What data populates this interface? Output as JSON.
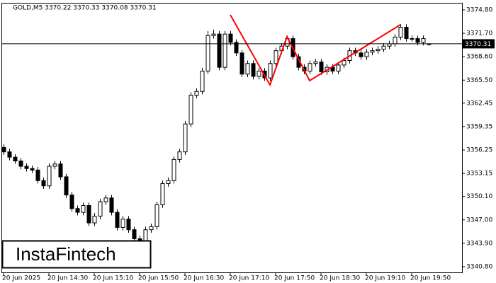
{
  "chart_data": {
    "type": "candlestick",
    "title": "GOLD,M5  3370.22 3370.33 3370.08 3370.31",
    "logo": "InstaFintech",
    "categories": [
      "20 Jun 2025",
      null,
      null,
      null,
      null,
      null,
      null,
      null,
      "20 Jun 14:30",
      null,
      null,
      null,
      null,
      null,
      null,
      null,
      "20 Jun 15:10",
      null,
      null,
      null,
      null,
      null,
      null,
      null,
      "20 Jun 15:50",
      null,
      null,
      null,
      null,
      null,
      null,
      null,
      "20 Jun 16:30",
      null,
      null,
      null,
      null,
      null,
      null,
      null,
      "20 Jun 17:10",
      null,
      null,
      null,
      null,
      null,
      null,
      null,
      "20 Jun 17:50",
      null,
      null,
      null,
      null,
      null,
      null,
      null,
      "20 Jun 18:30",
      null,
      null,
      null,
      null,
      null,
      null,
      null,
      "20 Jun 19:10",
      null,
      null,
      null,
      null,
      null,
      null,
      null,
      "20 Jun 19:50",
      null,
      null,
      null
    ],
    "open": [
      3356.6,
      3356.0,
      3355.3,
      3354.8,
      3354.1,
      3353.8,
      3353.6,
      3352.2,
      3351.5,
      3354.1,
      3354.4,
      3352.7,
      3350.3,
      3348.5,
      3348.0,
      3348.9,
      3346.6,
      3347.5,
      3349.4,
      3349.9,
      3348.0,
      3346.0,
      3347.1,
      3345.7,
      3344.5,
      3344.1,
      3345.7,
      3346.1,
      3349.0,
      3351.8,
      3352.2,
      3355.0,
      3356.0,
      3359.7,
      3363.5,
      3364.0,
      3366.7,
      3371.4,
      3371.6,
      3367.2,
      3371.6,
      3370.5,
      3369.1,
      3366.3,
      3367.7,
      3366.0,
      3366.7,
      3365.8,
      3367.7,
      3369.4,
      3370.0,
      3371.0,
      3368.6,
      3367.2,
      3366.7,
      3367.7,
      3367.9,
      3366.6,
      3367.2,
      3366.7,
      3367.5,
      3368.1,
      3369.4,
      3369.1,
      3368.6,
      3369.2,
      3369.4,
      3369.6,
      3370.0,
      3370.3,
      3371.2,
      3372.5,
      3371.0,
      3371.0,
      3370.5,
      3370.22
    ],
    "high": [
      3357.0,
      3356.4,
      3355.7,
      3355.2,
      3354.5,
      3354.2,
      3354.0,
      3352.6,
      3354.5,
      3354.8,
      3354.8,
      3353.1,
      3350.7,
      3348.9,
      3349.3,
      3349.3,
      3347.9,
      3349.8,
      3350.3,
      3350.3,
      3348.4,
      3347.5,
      3347.5,
      3346.1,
      3344.9,
      3346.1,
      3346.5,
      3349.4,
      3352.2,
      3352.6,
      3355.4,
      3356.4,
      3360.1,
      3363.9,
      3364.4,
      3367.1,
      3372.0,
      3372.2,
      3372.0,
      3372.0,
      3372.0,
      3370.9,
      3369.5,
      3368.1,
      3368.1,
      3367.1,
      3367.1,
      3368.1,
      3369.8,
      3370.4,
      3371.4,
      3371.4,
      3369.0,
      3367.6,
      3368.1,
      3368.3,
      3368.3,
      3367.6,
      3367.6,
      3367.9,
      3368.5,
      3369.8,
      3369.8,
      3369.5,
      3369.6,
      3369.8,
      3370.0,
      3370.4,
      3370.7,
      3371.6,
      3372.9,
      3372.9,
      3371.4,
      3371.4,
      3371.4,
      3370.33
    ],
    "low": [
      3355.6,
      3354.9,
      3354.4,
      3353.7,
      3353.4,
      3353.2,
      3351.8,
      3351.1,
      3351.1,
      3353.7,
      3352.3,
      3349.9,
      3348.1,
      3347.6,
      3347.6,
      3346.2,
      3346.2,
      3347.1,
      3349.0,
      3347.6,
      3345.6,
      3345.6,
      3345.3,
      3344.1,
      3343.7,
      3343.7,
      3345.3,
      3345.7,
      3348.6,
      3351.4,
      3351.8,
      3354.6,
      3355.6,
      3359.3,
      3363.1,
      3363.6,
      3366.3,
      3371.0,
      3366.8,
      3366.8,
      3370.1,
      3368.7,
      3365.9,
      3365.9,
      3365.6,
      3365.6,
      3365.4,
      3365.4,
      3367.3,
      3369.0,
      3369.6,
      3368.2,
      3366.8,
      3366.3,
      3366.3,
      3367.3,
      3366.2,
      3366.2,
      3366.3,
      3366.3,
      3367.1,
      3367.7,
      3368.7,
      3368.2,
      3368.2,
      3368.8,
      3369.0,
      3369.2,
      3369.6,
      3369.9,
      3370.8,
      3370.6,
      3370.6,
      3370.1,
      3370.1,
      3370.08
    ],
    "close": [
      3356.0,
      3355.3,
      3354.8,
      3354.1,
      3353.8,
      3353.6,
      3352.2,
      3351.5,
      3354.1,
      3354.4,
      3352.7,
      3350.3,
      3348.5,
      3348.0,
      3348.9,
      3346.6,
      3347.5,
      3349.4,
      3349.9,
      3348.0,
      3346.0,
      3347.1,
      3345.7,
      3344.5,
      3344.1,
      3345.7,
      3346.1,
      3349.0,
      3351.8,
      3352.2,
      3355.0,
      3356.0,
      3359.7,
      3363.5,
      3364.0,
      3366.7,
      3371.4,
      3371.6,
      3367.2,
      3371.6,
      3370.5,
      3369.1,
      3366.3,
      3367.7,
      3366.0,
      3366.7,
      3365.8,
      3367.7,
      3369.4,
      3370.0,
      3371.0,
      3368.6,
      3367.2,
      3366.7,
      3367.7,
      3367.9,
      3366.6,
      3367.2,
      3366.7,
      3367.5,
      3368.1,
      3369.4,
      3369.1,
      3368.6,
      3369.2,
      3369.4,
      3369.6,
      3370.0,
      3370.3,
      3371.2,
      3372.5,
      3371.0,
      3371.0,
      3370.5,
      3371.0,
      3370.31
    ],
    "up_color": "#ffffff",
    "down_color": "#000000",
    "last_price": 3370.31,
    "pattern": {
      "color": "#ff0000",
      "x": [
        40,
        47,
        50,
        54,
        70
      ],
      "values": [
        3374.14,
        3364.87,
        3371.24,
        3365.43,
        3372.83
      ]
    },
    "ylim": [
      3340.05,
      3375.64
    ],
    "yticks": [
      {
        "value": 3374.8,
        "label": "3374.80"
      },
      {
        "value": 3371.7,
        "label": "3371.70"
      },
      {
        "value": 3368.6,
        "label": "3368.60"
      },
      {
        "value": 3365.5,
        "label": "3365.50"
      },
      3362.45,
      3359.35,
      3356.25,
      3353.15,
      {
        "value": 3350.1,
        "label": "3350.10"
      },
      {
        "value": 3347,
        "label": "3347.00"
      },
      {
        "value": 3343.9,
        "label": "3343.90"
      },
      {
        "value": 3340.8,
        "label": "3340.80"
      }
    ]
  }
}
